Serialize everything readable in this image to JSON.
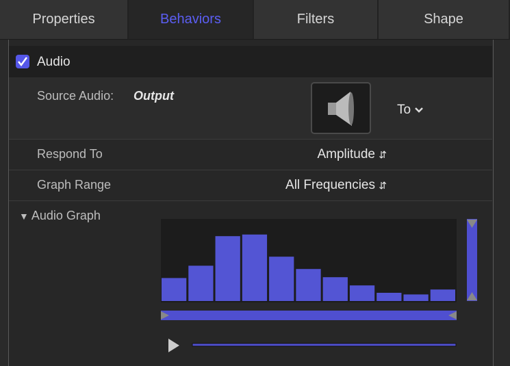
{
  "tabs": [
    "Properties",
    "Behaviors",
    "Filters",
    "Shape"
  ],
  "behavior": {
    "name": "Audio",
    "enabled": true
  },
  "source_audio": {
    "label": "Source Audio:",
    "value": "Output",
    "to": "To"
  },
  "respond_to": {
    "label": "Respond To",
    "value": "Amplitude"
  },
  "graph_range": {
    "label": "Graph Range",
    "value": "All Frequencies"
  },
  "audio_graph": {
    "label": "Audio Graph",
    "levels": [
      28,
      43,
      79,
      81,
      54,
      39,
      29,
      19,
      10,
      8,
      14
    ]
  }
}
